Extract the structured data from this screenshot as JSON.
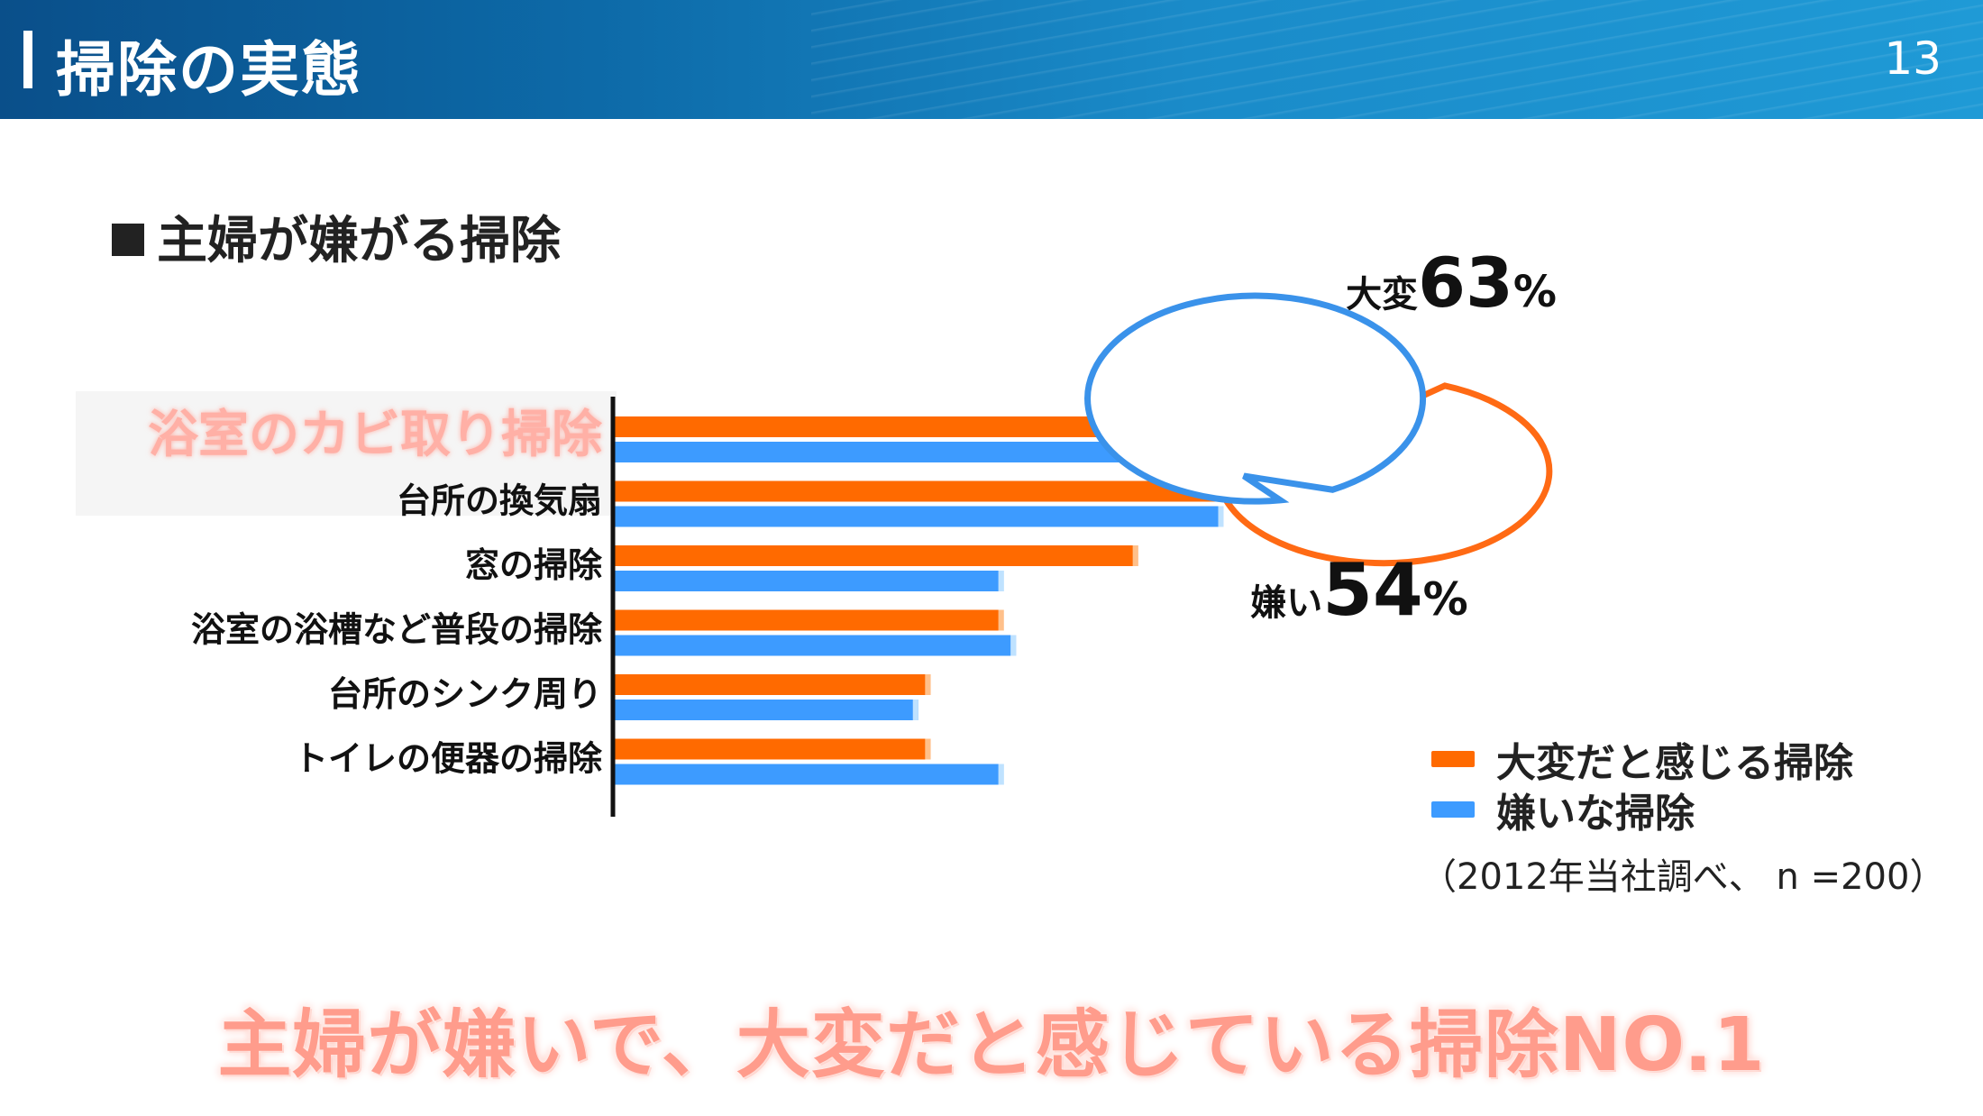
{
  "header": {
    "title": "掃除の実態",
    "page_number": "13"
  },
  "section_title": "主婦が嫌がる掃除",
  "callouts": {
    "hard": {
      "prefix": "大変",
      "number": "63",
      "unit": "%"
    },
    "dislike": {
      "prefix": "嫌い",
      "number": "54",
      "unit": "%"
    }
  },
  "legend": {
    "hard_label": "大変だと感じる掃除",
    "dislike_label": "嫌いな掃除"
  },
  "footnote": "（2012年当社調べ、 n =200）",
  "bottom_message": "主婦が嫌いで、大変だと感じている掃除NO.1",
  "colors": {
    "hard": "#ff6a00",
    "dislike": "#3d9bff",
    "highlight_label": "#ffb0a6",
    "callout_hard_border": "#ff6a14",
    "callout_dislike_border": "#3a92ea"
  },
  "chart_data": {
    "type": "bar",
    "orientation": "horizontal",
    "categories": [
      "浴室のカビ取り掃除",
      "台所の換気扇",
      "窓の掃除",
      "浴室の浴槽など普段の掃除",
      "台所のシンク周り",
      "トイレの便器の掃除"
    ],
    "highlighted_category": "浴室のカビ取り掃除",
    "series": [
      {
        "name": "大変だと感じる掃除",
        "values": [
          63,
          61,
          43,
          32,
          26,
          26
        ]
      },
      {
        "name": "嫌いな掃除",
        "values": [
          54,
          50,
          32,
          33,
          25,
          32
        ]
      }
    ],
    "xlim": [
      0,
      70
    ],
    "unit": "%",
    "legend_position": "bottom-right"
  }
}
